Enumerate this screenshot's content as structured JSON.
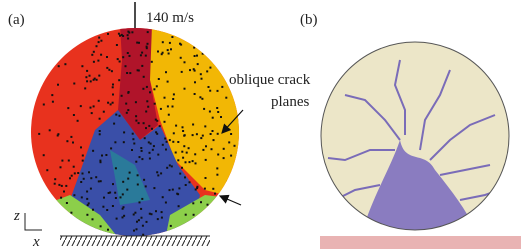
{
  "panels": [
    {
      "label": "(a)",
      "velocity": "140 m/s",
      "annotation": [
        "oblique crack",
        "planes"
      ],
      "axes": {
        "z": "z",
        "x": "x"
      }
    },
    {
      "label": "(b)"
    }
  ]
}
